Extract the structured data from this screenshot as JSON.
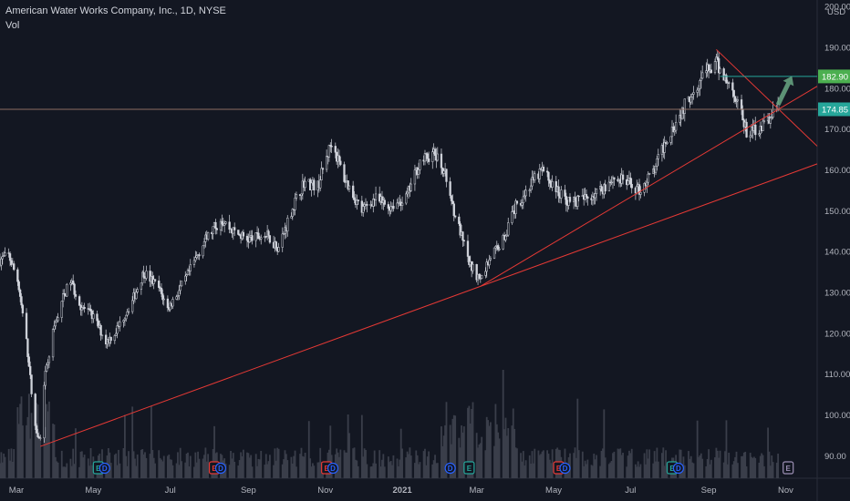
{
  "header": {
    "title": "American Water Works Company, Inc., 1D, NYSE",
    "volume_label": "Vol"
  },
  "colors": {
    "background": "#131722",
    "candle": "#d1d4dc",
    "volume": "#3a3e4a",
    "trendline": "#e53935",
    "target_line": "#26a69a",
    "price_tag": "#26a69a",
    "target_tag": "#4caf50",
    "horizontal_line": "#8d6e63",
    "arrow": "#6aa884"
  },
  "chart_data": {
    "type": "candlestick",
    "currency": "USD",
    "y_ticks": [
      90,
      100,
      110,
      120,
      130,
      140,
      150,
      160,
      170,
      180,
      190,
      200
    ],
    "y_tick_labels": [
      "90.00",
      "100.00",
      "110.00",
      "120.00",
      "130.00",
      "140.00",
      "150.00",
      "160.00",
      "170.00",
      "180.00",
      "190.00",
      "200.00"
    ],
    "ylim": [
      84.5,
      200.5
    ],
    "x_range": [
      "2020-02-17",
      "2021-11-26"
    ],
    "x_ticks": [
      {
        "date": "2020-03-01",
        "label": "Mar"
      },
      {
        "date": "2020-05-01",
        "label": "May"
      },
      {
        "date": "2020-07-01",
        "label": "Jul"
      },
      {
        "date": "2020-09-01",
        "label": "Sep"
      },
      {
        "date": "2020-11-01",
        "label": "Nov"
      },
      {
        "date": "2021-01-01",
        "label": "2021"
      },
      {
        "date": "2021-03-01",
        "label": "Mar"
      },
      {
        "date": "2021-05-01",
        "label": "May"
      },
      {
        "date": "2021-07-01",
        "label": "Jul"
      },
      {
        "date": "2021-09-01",
        "label": "Sep"
      },
      {
        "date": "2021-11-01",
        "label": "Nov"
      }
    ],
    "price_path": [
      [
        "2020-02-17",
        138
      ],
      [
        "2020-02-24",
        139
      ],
      [
        "2020-03-02",
        133
      ],
      [
        "2020-03-09",
        118
      ],
      [
        "2020-03-16",
        97
      ],
      [
        "2020-03-20",
        94
      ],
      [
        "2020-03-23",
        108
      ],
      [
        "2020-03-30",
        120
      ],
      [
        "2020-04-06",
        128
      ],
      [
        "2020-04-13",
        133
      ],
      [
        "2020-04-20",
        127
      ],
      [
        "2020-05-01",
        124
      ],
      [
        "2020-05-11",
        118
      ],
      [
        "2020-05-18",
        120
      ],
      [
        "2020-06-01",
        128
      ],
      [
        "2020-06-10",
        135
      ],
      [
        "2020-06-22",
        131
      ],
      [
        "2020-06-29",
        126
      ],
      [
        "2020-07-13",
        133
      ],
      [
        "2020-07-27",
        142
      ],
      [
        "2020-08-10",
        148
      ],
      [
        "2020-08-20",
        145
      ],
      [
        "2020-08-31",
        143
      ],
      [
        "2020-09-15",
        144
      ],
      [
        "2020-09-25",
        141
      ],
      [
        "2020-10-05",
        150
      ],
      [
        "2020-10-15",
        157
      ],
      [
        "2020-10-26",
        156
      ],
      [
        "2020-11-02",
        163
      ],
      [
        "2020-11-06",
        167
      ],
      [
        "2020-11-16",
        158
      ],
      [
        "2020-11-30",
        150
      ],
      [
        "2020-12-10",
        153
      ],
      [
        "2020-12-21",
        151
      ],
      [
        "2021-01-04",
        153
      ],
      [
        "2021-01-15",
        162
      ],
      [
        "2021-01-26",
        164
      ],
      [
        "2021-02-03",
        160
      ],
      [
        "2021-02-12",
        149
      ],
      [
        "2021-02-23",
        137
      ],
      [
        "2021-03-04",
        133
      ],
      [
        "2021-03-12",
        139
      ],
      [
        "2021-03-22",
        143
      ],
      [
        "2021-04-01",
        151
      ],
      [
        "2021-04-12",
        156
      ],
      [
        "2021-04-22",
        160
      ],
      [
        "2021-05-03",
        155
      ],
      [
        "2021-05-14",
        152
      ],
      [
        "2021-05-26",
        153
      ],
      [
        "2021-06-07",
        155
      ],
      [
        "2021-06-17",
        158
      ],
      [
        "2021-06-28",
        157
      ],
      [
        "2021-07-08",
        155
      ],
      [
        "2021-07-20",
        160
      ],
      [
        "2021-07-30",
        168
      ],
      [
        "2021-08-10",
        174
      ],
      [
        "2021-08-20",
        180
      ],
      [
        "2021-08-30",
        184
      ],
      [
        "2021-09-07",
        186
      ],
      [
        "2021-09-15",
        182
      ],
      [
        "2021-09-24",
        177
      ],
      [
        "2021-10-01",
        169
      ],
      [
        "2021-10-08",
        170
      ],
      [
        "2021-10-15",
        171
      ],
      [
        "2021-10-22",
        174
      ],
      [
        "2021-10-26",
        174.85
      ]
    ],
    "price_tags": [
      {
        "value": 182.9,
        "label": "182.90",
        "kind": "target"
      },
      {
        "value": 174.85,
        "label": "174.85",
        "kind": "last"
      }
    ],
    "drawings": {
      "trendlines": [
        {
          "from": [
            "2020-03-20",
            92.3
          ],
          "to": [
            "2021-03-04",
            131.5
          ],
          "extend": "right"
        },
        {
          "from": [
            "2021-03-04",
            131.5
          ],
          "to": [
            "2021-10-26",
            174.8
          ],
          "extend": "right"
        },
        {
          "from": [
            "2021-09-07",
            189.5
          ],
          "to": [
            "2021-10-26",
            175.0
          ],
          "extend": "right"
        }
      ],
      "horizontal_lines": [
        {
          "value": 174.85
        }
      ],
      "target_line": {
        "value": 182.9,
        "from": "2021-09-10"
      },
      "arrow": {
        "from": [
          "2021-10-26",
          176
        ],
        "to": [
          "2021-11-06",
          183
        ]
      }
    },
    "events": [
      {
        "date": "2020-05-05",
        "type": "earnings",
        "label": "E"
      },
      {
        "date": "2020-05-10",
        "type": "dividend",
        "label": "D"
      },
      {
        "date": "2020-08-05",
        "type": "earnings",
        "label": "E"
      },
      {
        "date": "2020-08-10",
        "type": "dividend",
        "label": "D"
      },
      {
        "date": "2020-11-02",
        "type": "earnings",
        "label": "E"
      },
      {
        "date": "2020-11-07",
        "type": "dividend",
        "label": "D"
      },
      {
        "date": "2021-02-08",
        "type": "dividend",
        "label": "D"
      },
      {
        "date": "2021-02-23",
        "type": "earnings",
        "label": "E"
      },
      {
        "date": "2021-05-05",
        "type": "earnings",
        "label": "E"
      },
      {
        "date": "2021-05-10",
        "type": "dividend",
        "label": "D"
      },
      {
        "date": "2021-08-03",
        "type": "earnings",
        "label": "E"
      },
      {
        "date": "2021-08-08",
        "type": "dividend",
        "label": "D"
      },
      {
        "date": "2021-11-03",
        "type": "earnings",
        "label": "E"
      }
    ]
  }
}
